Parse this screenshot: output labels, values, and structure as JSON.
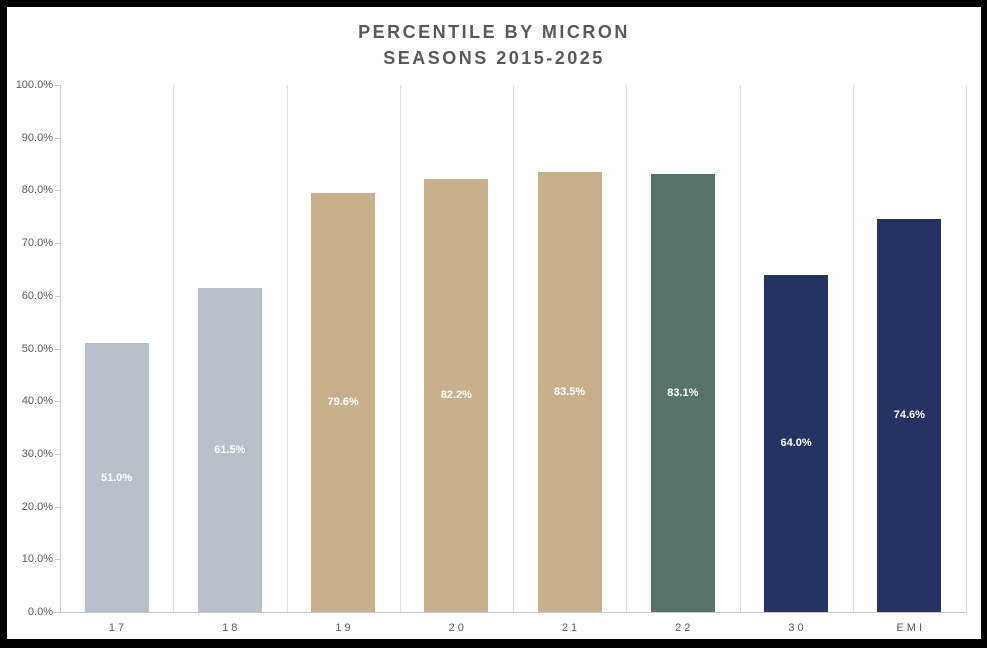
{
  "chart_data": {
    "type": "bar",
    "title": "PERCENTILE BY MICRON",
    "subtitle": "SEASONS 2015-2025",
    "categories": [
      "17",
      "18",
      "19",
      "20",
      "21",
      "22",
      "30",
      "EMI"
    ],
    "values": [
      51.0,
      61.5,
      79.6,
      82.2,
      83.5,
      83.1,
      64.0,
      74.6
    ],
    "data_labels": [
      "51.0%",
      "61.5%",
      "79.6%",
      "82.2%",
      "83.5%",
      "83.1%",
      "64.0%",
      "74.6%"
    ],
    "bar_colors": [
      "#b7c0cb",
      "#b7c0cb",
      "#c8b08c",
      "#c8b08c",
      "#c8b08c",
      "#567269",
      "#263261",
      "#263261"
    ],
    "ylim": [
      0,
      100
    ],
    "ytick_labels": [
      "0.0%",
      "10.0%",
      "20.0%",
      "30.0%",
      "40.0%",
      "50.0%",
      "60.0%",
      "70.0%",
      "80.0%",
      "90.0%",
      "100.0%"
    ],
    "xlabel": "",
    "ylabel": "",
    "legend": "none",
    "grid": "vertical-only",
    "data_label_position": "center-inside",
    "colors": {
      "title_text": "#595959",
      "axis_text": "#595959",
      "data_label_text": "#ffffff",
      "gridline": "#dcdcdc",
      "axis_line": "#c9ced6",
      "plot_background": "#ffffff",
      "frame_border": "#000000"
    }
  }
}
